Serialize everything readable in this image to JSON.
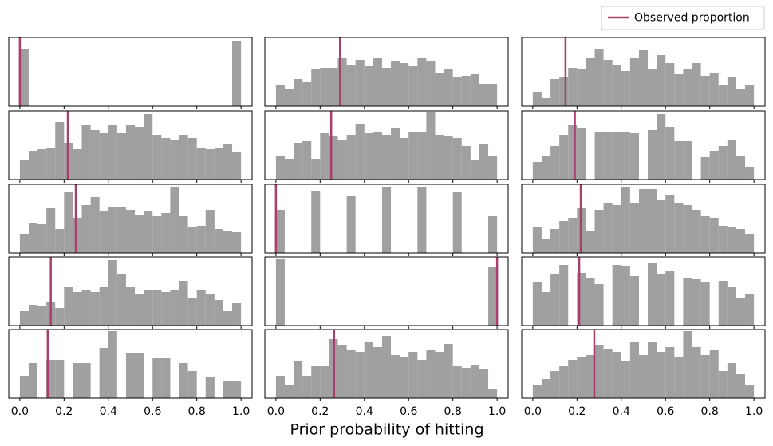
{
  "figure": {
    "xlabel": "Prior probability of hitting",
    "legend": {
      "label": "Observed proportion",
      "color": "#a8406b",
      "loc": "upper right"
    }
  },
  "chart_data": [
    {
      "type": "histogram",
      "bins": [
        0,
        0.04,
        0.08,
        0.12,
        0.16,
        0.2,
        0.24,
        0.28,
        0.32,
        0.36,
        0.4,
        0.44,
        0.48,
        0.52,
        0.56,
        0.6,
        0.64,
        0.68,
        0.72,
        0.76,
        0.8,
        0.84,
        0.88,
        0.92,
        0.96,
        1
      ],
      "values": [
        71,
        0,
        0,
        0,
        0,
        0,
        0,
        0,
        0,
        0,
        0,
        0,
        0,
        0,
        0,
        0,
        0,
        0,
        0,
        0,
        0,
        0,
        0,
        0,
        81
      ],
      "color": "#a0a0a0",
      "xlim": [
        -0.05,
        1.05
      ],
      "ylim": [
        0,
        86
      ],
      "xticks": [
        0,
        0.2,
        0.4,
        0.6,
        0.8,
        1
      ],
      "observed": 0
    },
    {
      "type": "histogram",
      "bins": [
        0,
        0.04,
        0.08,
        0.12,
        0.16,
        0.2,
        0.24,
        0.28,
        0.32,
        0.36,
        0.4,
        0.44,
        0.48,
        0.52,
        0.56,
        0.6,
        0.64,
        0.68,
        0.72,
        0.76,
        0.8,
        0.84,
        0.88,
        0.92,
        0.96,
        1
      ],
      "values": [
        26,
        22,
        34,
        30,
        46,
        48,
        48,
        60,
        52,
        58,
        50,
        60,
        48,
        56,
        54,
        50,
        60,
        56,
        42,
        46,
        36,
        38,
        40,
        28,
        28
      ],
      "color": "#a0a0a0",
      "xlim": [
        -0.05,
        1.05
      ],
      "ylim": [
        0,
        86
      ],
      "xticks": [
        0,
        0.2,
        0.4,
        0.6,
        0.8,
        1
      ],
      "observed": 0.29
    },
    {
      "type": "histogram",
      "bins": [
        0,
        0.04,
        0.08,
        0.12,
        0.16,
        0.2,
        0.24,
        0.28,
        0.32,
        0.36,
        0.4,
        0.44,
        0.48,
        0.52,
        0.56,
        0.6,
        0.64,
        0.68,
        0.72,
        0.76,
        0.8,
        0.84,
        0.88,
        0.92,
        0.96,
        1
      ],
      "values": [
        18,
        10,
        34,
        36,
        48,
        46,
        60,
        72,
        58,
        52,
        44,
        60,
        70,
        46,
        64,
        54,
        40,
        46,
        54,
        38,
        42,
        26,
        36,
        22,
        26
      ],
      "color": "#a0a0a0",
      "xlim": [
        -0.05,
        1.05
      ],
      "ylim": [
        0,
        86
      ],
      "xticks": [
        0,
        0.2,
        0.4,
        0.6,
        0.8,
        1
      ],
      "observed": 0.148
    },
    {
      "type": "histogram",
      "bins": [
        0,
        0.04,
        0.08,
        0.12,
        0.16,
        0.2,
        0.24,
        0.28,
        0.32,
        0.36,
        0.4,
        0.44,
        0.48,
        0.52,
        0.56,
        0.6,
        0.64,
        0.68,
        0.72,
        0.76,
        0.8,
        0.84,
        0.88,
        0.92,
        0.96,
        1
      ],
      "values": [
        24,
        36,
        38,
        40,
        72,
        46,
        38,
        68,
        62,
        58,
        68,
        58,
        68,
        66,
        82,
        56,
        52,
        50,
        56,
        52,
        40,
        38,
        40,
        44,
        34
      ],
      "color": "#a0a0a0",
      "xlim": [
        -0.05,
        1.05
      ],
      "ylim": [
        0,
        86
      ],
      "xticks": [
        0,
        0.2,
        0.4,
        0.6,
        0.8,
        1
      ],
      "observed": 0.217
    },
    {
      "type": "histogram",
      "bins": [
        0,
        0.04,
        0.08,
        0.12,
        0.16,
        0.2,
        0.24,
        0.28,
        0.32,
        0.36,
        0.4,
        0.44,
        0.48,
        0.52,
        0.56,
        0.6,
        0.64,
        0.68,
        0.72,
        0.76,
        0.8,
        0.84,
        0.88,
        0.92,
        0.96,
        1
      ],
      "values": [
        30,
        26,
        46,
        48,
        26,
        58,
        54,
        50,
        56,
        70,
        58,
        60,
        56,
        64,
        52,
        60,
        60,
        84,
        56,
        54,
        52,
        42,
        24,
        44,
        30
      ],
      "color": "#a0a0a0",
      "xlim": [
        -0.05,
        1.05
      ],
      "ylim": [
        0,
        86
      ],
      "xticks": [
        0,
        0.2,
        0.4,
        0.6,
        0.8,
        1
      ],
      "observed": 0.25
    },
    {
      "type": "histogram",
      "bins": [
        0,
        0.04,
        0.08,
        0.12,
        0.16,
        0.2,
        0.24,
        0.28,
        0.32,
        0.36,
        0.4,
        0.44,
        0.48,
        0.52,
        0.56,
        0.6,
        0.64,
        0.68,
        0.72,
        0.76,
        0.8,
        0.84,
        0.88,
        0.92,
        0.96,
        1
      ],
      "values": [
        22,
        30,
        42,
        56,
        68,
        64,
        0,
        60,
        60,
        60,
        60,
        58,
        0,
        62,
        82,
        66,
        48,
        48,
        0,
        28,
        36,
        42,
        50,
        30,
        16
      ],
      "color": "#a0a0a0",
      "xlim": [
        -0.05,
        1.05
      ],
      "ylim": [
        0,
        86
      ],
      "xticks": [
        0,
        0.2,
        0.4,
        0.6,
        0.8,
        1
      ],
      "observed": 0.19
    },
    {
      "type": "histogram",
      "bins": [
        0,
        0.04,
        0.08,
        0.12,
        0.16,
        0.2,
        0.24,
        0.28,
        0.32,
        0.36,
        0.4,
        0.44,
        0.48,
        0.52,
        0.56,
        0.6,
        0.64,
        0.68,
        0.72,
        0.76,
        0.8,
        0.84,
        0.88,
        0.92,
        0.96,
        1
      ],
      "values": [
        24,
        38,
        36,
        56,
        30,
        76,
        44,
        60,
        70,
        52,
        58,
        58,
        54,
        48,
        52,
        46,
        50,
        82,
        46,
        32,
        34,
        54,
        30,
        28,
        26
      ],
      "color": "#a0a0a0",
      "xlim": [
        -0.05,
        1.05
      ],
      "ylim": [
        0,
        86
      ],
      "xticks": [
        0,
        0.2,
        0.4,
        0.6,
        0.8,
        1
      ],
      "observed": 0.253
    },
    {
      "type": "histogram",
      "bins": [
        0,
        0.04,
        0.08,
        0.12,
        0.16,
        0.2,
        0.24,
        0.28,
        0.32,
        0.36,
        0.4,
        0.44,
        0.48,
        0.52,
        0.56,
        0.6,
        0.64,
        0.68,
        0.72,
        0.76,
        0.8,
        0.84,
        0.88,
        0.92,
        0.96,
        1
      ],
      "values": [
        54,
        0,
        0,
        0,
        77,
        0,
        0,
        0,
        71,
        0,
        0,
        0,
        82,
        0,
        0,
        0,
        82,
        0,
        0,
        0,
        76,
        0,
        0,
        0,
        46
      ],
      "color": "#a0a0a0",
      "xlim": [
        -0.05,
        1.05
      ],
      "ylim": [
        0,
        86
      ],
      "xticks": [
        0,
        0.2,
        0.4,
        0.6,
        0.8,
        1
      ],
      "observed": 0
    },
    {
      "type": "histogram",
      "bins": [
        0,
        0.04,
        0.08,
        0.12,
        0.16,
        0.2,
        0.24,
        0.28,
        0.32,
        0.36,
        0.4,
        0.44,
        0.48,
        0.52,
        0.56,
        0.6,
        0.64,
        0.68,
        0.72,
        0.76,
        0.8,
        0.84,
        0.88,
        0.92,
        0.96,
        1
      ],
      "values": [
        32,
        18,
        30,
        40,
        44,
        56,
        28,
        54,
        62,
        60,
        82,
        62,
        80,
        80,
        66,
        72,
        62,
        60,
        54,
        46,
        44,
        34,
        32,
        30,
        24
      ],
      "color": "#a0a0a0",
      "xlim": [
        -0.05,
        1.05
      ],
      "ylim": [
        0,
        86
      ],
      "xticks": [
        0,
        0.2,
        0.4,
        0.6,
        0.8,
        1
      ],
      "observed": 0.217
    },
    {
      "type": "histogram",
      "bins": [
        0,
        0.04,
        0.08,
        0.12,
        0.16,
        0.2,
        0.24,
        0.28,
        0.32,
        0.36,
        0.4,
        0.44,
        0.48,
        0.52,
        0.56,
        0.6,
        0.64,
        0.68,
        0.72,
        0.76,
        0.8,
        0.84,
        0.88,
        0.92,
        0.96,
        1
      ],
      "values": [
        18,
        26,
        24,
        30,
        22,
        48,
        42,
        44,
        42,
        48,
        82,
        64,
        48,
        40,
        44,
        44,
        42,
        44,
        56,
        34,
        44,
        40,
        32,
        18,
        28
      ],
      "color": "#a0a0a0",
      "xlim": [
        -0.05,
        1.05
      ],
      "ylim": [
        0,
        86
      ],
      "xticks": [
        0,
        0.2,
        0.4,
        0.6,
        0.8,
        1
      ],
      "observed": 0.14
    },
    {
      "type": "histogram",
      "bins": [
        0,
        0.04,
        0.08,
        0.12,
        0.16,
        0.2,
        0.24,
        0.28,
        0.32,
        0.36,
        0.4,
        0.44,
        0.48,
        0.52,
        0.56,
        0.6,
        0.64,
        0.68,
        0.72,
        0.76,
        0.8,
        0.84,
        0.88,
        0.92,
        0.96,
        1
      ],
      "values": [
        83,
        0,
        0,
        0,
        0,
        0,
        0,
        0,
        0,
        0,
        0,
        0,
        0,
        0,
        0,
        0,
        0,
        0,
        0,
        0,
        0,
        0,
        0,
        0,
        73
      ],
      "color": "#a0a0a0",
      "xlim": [
        -0.05,
        1.05
      ],
      "ylim": [
        0,
        86
      ],
      "xticks": [
        0,
        0.2,
        0.4,
        0.6,
        0.8,
        1
      ],
      "observed": 1
    },
    {
      "type": "histogram",
      "bins": [
        0,
        0.04,
        0.08,
        0.12,
        0.16,
        0.2,
        0.24,
        0.28,
        0.32,
        0.36,
        0.4,
        0.44,
        0.48,
        0.52,
        0.56,
        0.6,
        0.64,
        0.68,
        0.72,
        0.76,
        0.8,
        0.84,
        0.88,
        0.92,
        0.96,
        1
      ],
      "values": [
        54,
        42,
        64,
        76,
        0,
        66,
        60,
        52,
        0,
        76,
        74,
        62,
        0,
        78,
        64,
        68,
        0,
        60,
        58,
        54,
        0,
        56,
        48,
        34,
        40
      ],
      "color": "#a0a0a0",
      "xlim": [
        -0.05,
        1.05
      ],
      "ylim": [
        0,
        86
      ],
      "xticks": [
        0,
        0.2,
        0.4,
        0.6,
        0.8,
        1
      ],
      "observed": 0.21
    },
    {
      "type": "histogram",
      "bins": [
        0,
        0.04,
        0.08,
        0.12,
        0.16,
        0.2,
        0.24,
        0.28,
        0.32,
        0.36,
        0.4,
        0.44,
        0.48,
        0.52,
        0.56,
        0.6,
        0.64,
        0.68,
        0.72,
        0.76,
        0.8,
        0.84,
        0.88,
        0.92,
        0.96,
        1
      ],
      "values": [
        28,
        44,
        0,
        48,
        48,
        0,
        44,
        44,
        0,
        63,
        84,
        0,
        56,
        56,
        0,
        50,
        50,
        0,
        44,
        34,
        0,
        26,
        0,
        22,
        22
      ],
      "color": "#a0a0a0",
      "xlim": [
        -0.05,
        1.05
      ],
      "ylim": [
        0,
        86
      ],
      "xticks": [
        {
          "value": 0,
          "label": "0.0"
        },
        {
          "value": 0.2,
          "label": "0.2"
        },
        {
          "value": 0.4,
          "label": "0.4"
        },
        {
          "value": 0.6,
          "label": "0.6"
        },
        {
          "value": 0.8,
          "label": "0.8"
        },
        {
          "value": 1,
          "label": "1.0"
        }
      ],
      "observed": 0.126
    },
    {
      "type": "histogram",
      "bins": [
        0,
        0.04,
        0.08,
        0.12,
        0.16,
        0.2,
        0.24,
        0.28,
        0.32,
        0.36,
        0.4,
        0.44,
        0.48,
        0.52,
        0.56,
        0.6,
        0.64,
        0.68,
        0.72,
        0.76,
        0.8,
        0.84,
        0.88,
        0.92,
        0.96,
        1
      ],
      "values": [
        28,
        16,
        46,
        28,
        40,
        40,
        74,
        66,
        60,
        58,
        70,
        64,
        78,
        54,
        52,
        58,
        48,
        60,
        58,
        68,
        40,
        38,
        42,
        36,
        12
      ],
      "color": "#a0a0a0",
      "xlim": [
        -0.05,
        1.05
      ],
      "ylim": [
        0,
        86
      ],
      "xticks": [
        {
          "value": 0,
          "label": "0.0"
        },
        {
          "value": 0.2,
          "label": "0.2"
        },
        {
          "value": 0.4,
          "label": "0.4"
        },
        {
          "value": 0.6,
          "label": "0.6"
        },
        {
          "value": 0.8,
          "label": "0.8"
        },
        {
          "value": 1,
          "label": "1.0"
        }
      ],
      "observed": 0.263
    },
    {
      "type": "histogram",
      "bins": [
        0,
        0.04,
        0.08,
        0.12,
        0.16,
        0.2,
        0.24,
        0.28,
        0.32,
        0.36,
        0.4,
        0.44,
        0.48,
        0.52,
        0.56,
        0.6,
        0.64,
        0.68,
        0.72,
        0.76,
        0.8,
        0.84,
        0.88,
        0.92,
        0.96,
        1
      ],
      "values": [
        16,
        24,
        34,
        40,
        48,
        52,
        54,
        66,
        62,
        58,
        46,
        70,
        54,
        70,
        58,
        64,
        52,
        84,
        64,
        54,
        60,
        34,
        44,
        30,
        16
      ],
      "color": "#a0a0a0",
      "xlim": [
        -0.05,
        1.05
      ],
      "ylim": [
        0,
        86
      ],
      "xticks": [
        {
          "value": 0,
          "label": "0.0"
        },
        {
          "value": 0.2,
          "label": "0.2"
        },
        {
          "value": 0.4,
          "label": "0.4"
        },
        {
          "value": 0.6,
          "label": "0.6"
        },
        {
          "value": 0.8,
          "label": "0.8"
        },
        {
          "value": 1,
          "label": "1.0"
        }
      ],
      "observed": 0.278
    }
  ]
}
